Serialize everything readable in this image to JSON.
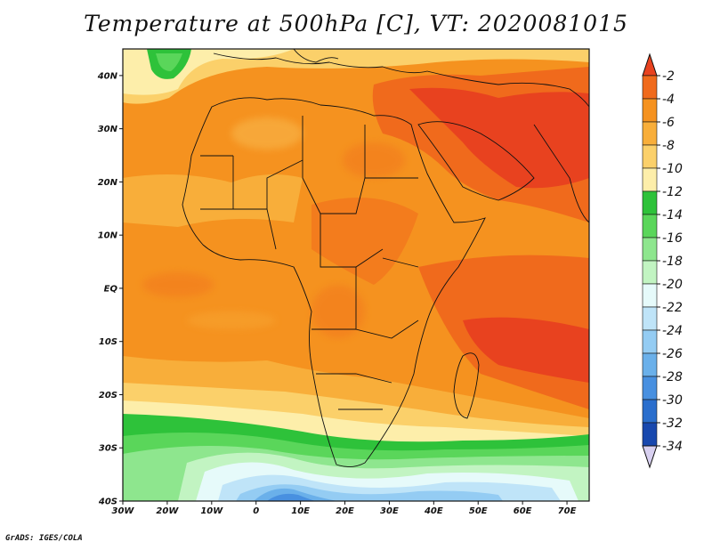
{
  "title": "Temperature at 500hPa [C], VT: 2020081015",
  "footer": "GrADS: IGES/COLA",
  "map": {
    "variable": "Temperature at 500hPa",
    "units": "C",
    "valid_time": "2020081015",
    "projection": "lat-lon",
    "lat_range": [
      -40,
      45
    ],
    "lon_range": [
      -30,
      75
    ]
  },
  "axes": {
    "lat_ticks": [
      "40N",
      "30N",
      "20N",
      "10N",
      "EQ",
      "10S",
      "20S",
      "30S",
      "40S"
    ],
    "lon_ticks": [
      "30W",
      "20W",
      "10W",
      "0",
      "10E",
      "20E",
      "30E",
      "40E",
      "50E",
      "60E",
      "70E"
    ]
  },
  "colorbar": {
    "labels": [
      "-2",
      "-4",
      "-6",
      "-8",
      "-10",
      "-12",
      "-14",
      "-16",
      "-18",
      "-20",
      "-22",
      "-24",
      "-26",
      "-28",
      "-30",
      "-32",
      "-34"
    ],
    "colors": [
      "#e8421f",
      "#f06a1c",
      "#f5921f",
      "#f8ae3a",
      "#fbd06a",
      "#fdeeaa",
      "#2ec23a",
      "#5ad65a",
      "#8ee68e",
      "#c2f4c2",
      "#e6fafa",
      "#bfe4f8",
      "#94ccf3",
      "#6ab0ea",
      "#4890e0",
      "#2a6ecd",
      "#1848ae",
      "#0c1e78"
    ],
    "top_arrow_color": "#e8421f",
    "bottom_arrow_color": "#d8d0f0"
  }
}
